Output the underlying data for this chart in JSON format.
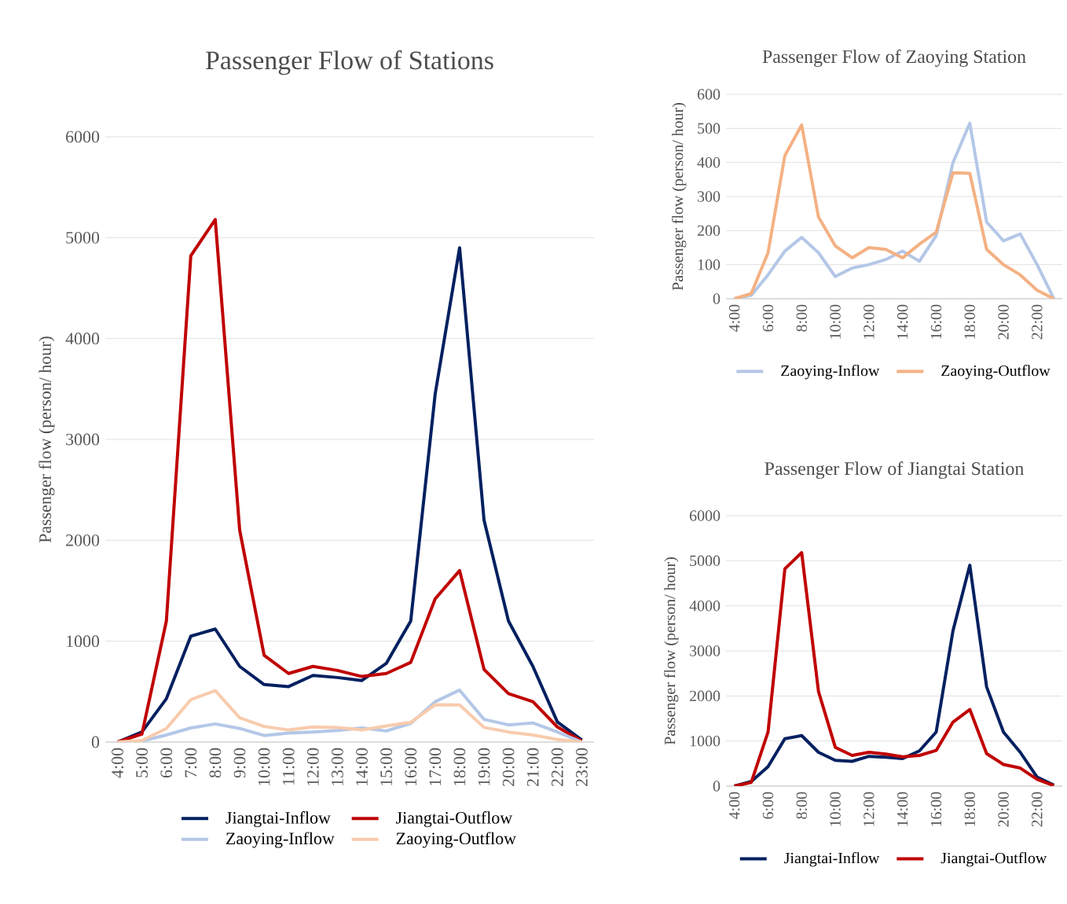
{
  "chart_data": [
    {
      "type": "line",
      "title": "Passenger Flow of Stations",
      "ylabel": "Passenger flow (person/ hour)",
      "categories": [
        "4:00",
        "5:00",
        "6:00",
        "7:00",
        "8:00",
        "9:00",
        "10:00",
        "11:00",
        "12:00",
        "13:00",
        "14:00",
        "15:00",
        "16:00",
        "17:00",
        "18:00",
        "19:00",
        "20:00",
        "21:00",
        "22:00",
        "23:00"
      ],
      "ylim": [
        0,
        6000
      ],
      "yticks": [
        0,
        1000,
        2000,
        3000,
        4000,
        5000,
        6000
      ],
      "grid": "y",
      "legend": "bottom",
      "marker": "none",
      "line_style": "solid",
      "series": [
        {
          "name": "Jiangtai-Inflow",
          "color": "#002060",
          "values": [
            0,
            100,
            430,
            1050,
            1120,
            750,
            570,
            550,
            660,
            640,
            610,
            780,
            1200,
            3450,
            4900,
            2200,
            1200,
            750,
            200,
            20
          ]
        },
        {
          "name": "Jiangtai-Outflow",
          "color": "#c00000",
          "values": [
            0,
            80,
            1200,
            4820,
            5180,
            2100,
            860,
            680,
            750,
            710,
            650,
            680,
            790,
            1420,
            1700,
            720,
            480,
            400,
            150,
            10
          ]
        },
        {
          "name": "Zaoying-Inflow",
          "color": "#b4c7e7",
          "values": [
            0,
            10,
            70,
            140,
            180,
            135,
            65,
            90,
            100,
            115,
            140,
            110,
            185,
            400,
            515,
            225,
            170,
            190,
            100,
            0
          ]
        },
        {
          "name": "Zaoying-Outflow",
          "color": "#f8cbad",
          "values": [
            0,
            15,
            135,
            420,
            510,
            240,
            155,
            120,
            150,
            145,
            120,
            160,
            195,
            370,
            368,
            145,
            100,
            70,
            25,
            0
          ]
        }
      ]
    },
    {
      "type": "line",
      "title": "Passenger Flow of Zaoying Station",
      "ylabel": "Passenger flow (person/ hour)",
      "categories": [
        "4:00",
        null,
        "6:00",
        null,
        "8:00",
        null,
        "10:00",
        null,
        "12:00",
        null,
        "14:00",
        null,
        "16:00",
        null,
        "18:00",
        null,
        "20:00",
        null,
        "22:00",
        null
      ],
      "ylim": [
        0,
        600
      ],
      "yticks": [
        0,
        100,
        200,
        300,
        400,
        500,
        600
      ],
      "grid": "y",
      "legend": "bottom",
      "marker": "none",
      "line_style": "solid",
      "series": [
        {
          "name": "Zaoying-Inflow",
          "color": "#b4c7e7",
          "values": [
            0,
            10,
            70,
            140,
            180,
            135,
            65,
            90,
            100,
            115,
            140,
            110,
            185,
            400,
            515,
            225,
            170,
            190,
            100,
            0
          ]
        },
        {
          "name": "Zaoying-Outflow",
          "color": "#f4b183",
          "values": [
            0,
            15,
            135,
            420,
            510,
            240,
            155,
            120,
            150,
            145,
            120,
            160,
            195,
            370,
            368,
            145,
            100,
            70,
            25,
            0
          ]
        }
      ]
    },
    {
      "type": "line",
      "title": "Passenger Flow of Jiangtai Station",
      "ylabel": "Passenger flow (person/ hour)",
      "categories": [
        "4:00",
        null,
        "6:00",
        null,
        "8:00",
        null,
        "10:00",
        null,
        "12:00",
        null,
        "14:00",
        null,
        "16:00",
        null,
        "18:00",
        null,
        "20:00",
        null,
        "22:00",
        null
      ],
      "ylim": [
        0,
        6000
      ],
      "yticks": [
        0,
        1000,
        2000,
        3000,
        4000,
        5000,
        6000
      ],
      "grid": "y",
      "legend": "bottom",
      "marker": "none",
      "line_style": "solid",
      "series": [
        {
          "name": "Jiangtai-Inflow",
          "color": "#002060",
          "values": [
            0,
            100,
            430,
            1050,
            1120,
            750,
            570,
            550,
            660,
            640,
            610,
            780,
            1200,
            3450,
            4900,
            2200,
            1200,
            750,
            200,
            20
          ]
        },
        {
          "name": "Jiangtai-Outflow",
          "color": "#c00000",
          "values": [
            0,
            80,
            1200,
            4820,
            5180,
            2100,
            860,
            680,
            750,
            710,
            650,
            680,
            790,
            1420,
            1700,
            720,
            480,
            400,
            150,
            10
          ]
        }
      ]
    }
  ]
}
